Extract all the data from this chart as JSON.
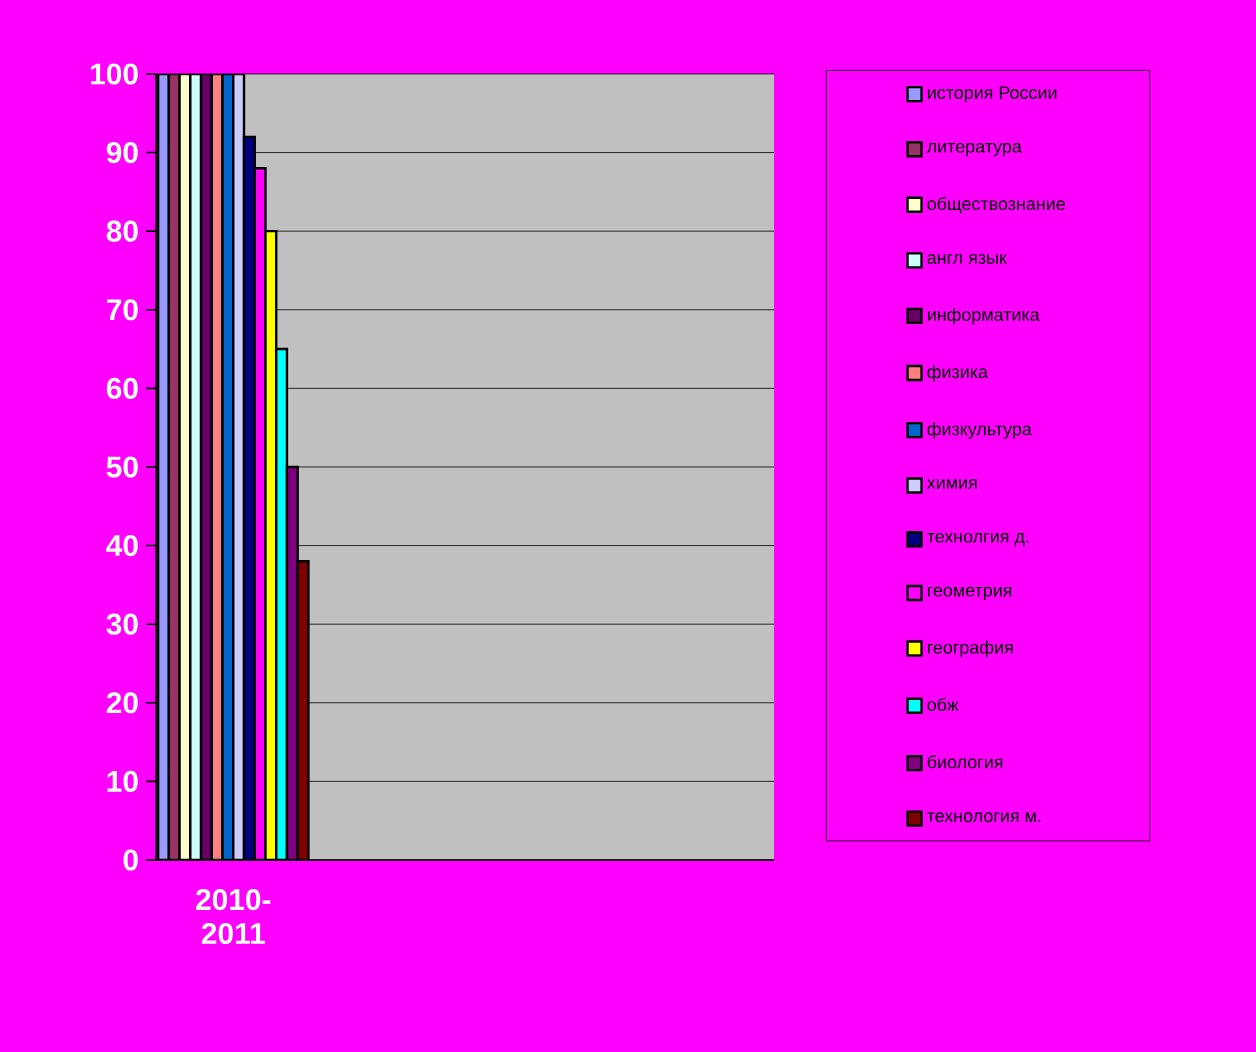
{
  "chart_data": {
    "type": "bar",
    "categories": [
      "2010-2011",
      null,
      null,
      null
    ],
    "ylim": [
      0,
      100
    ],
    "yticks": [
      0,
      10,
      20,
      30,
      40,
      50,
      60,
      70,
      80,
      90,
      100
    ],
    "grid": "y",
    "legend": "right",
    "series": [
      {
        "name": "история России",
        "color": "#9999ff",
        "values": [
          100,
          null,
          null,
          null
        ]
      },
      {
        "name": "литература",
        "color": "#993366",
        "values": [
          100,
          null,
          null,
          null
        ]
      },
      {
        "name": "обществознание",
        "color": "#ffffcc",
        "values": [
          100,
          null,
          null,
          null
        ]
      },
      {
        "name": "англ язык",
        "color": "#ccffff",
        "values": [
          100,
          null,
          null,
          null
        ]
      },
      {
        "name": "информатика",
        "color": "#660066",
        "values": [
          100,
          null,
          null,
          null
        ]
      },
      {
        "name": "физика",
        "color": "#ff8080",
        "values": [
          100,
          null,
          null,
          null
        ]
      },
      {
        "name": "физкультура",
        "color": "#0066cc",
        "values": [
          100,
          null,
          null,
          null
        ]
      },
      {
        "name": "химия",
        "color": "#ccccff",
        "values": [
          100,
          null,
          null,
          null
        ]
      },
      {
        "name": "технолгия д.",
        "color": "#000080",
        "values": [
          92,
          null,
          null,
          null
        ]
      },
      {
        "name": "геометрия",
        "color": "#ff00ff",
        "values": [
          88,
          null,
          null,
          null
        ]
      },
      {
        "name": "география",
        "color": "#ffff00",
        "values": [
          80,
          null,
          null,
          null
        ]
      },
      {
        "name": "обж",
        "color": "#00ffff",
        "values": [
          65,
          null,
          null,
          null
        ]
      },
      {
        "name": "биология",
        "color": "#800080",
        "values": [
          50,
          null,
          null,
          null
        ]
      },
      {
        "name": "технология м.",
        "color": "#800000",
        "values": [
          38,
          null,
          null,
          null
        ]
      }
    ]
  }
}
